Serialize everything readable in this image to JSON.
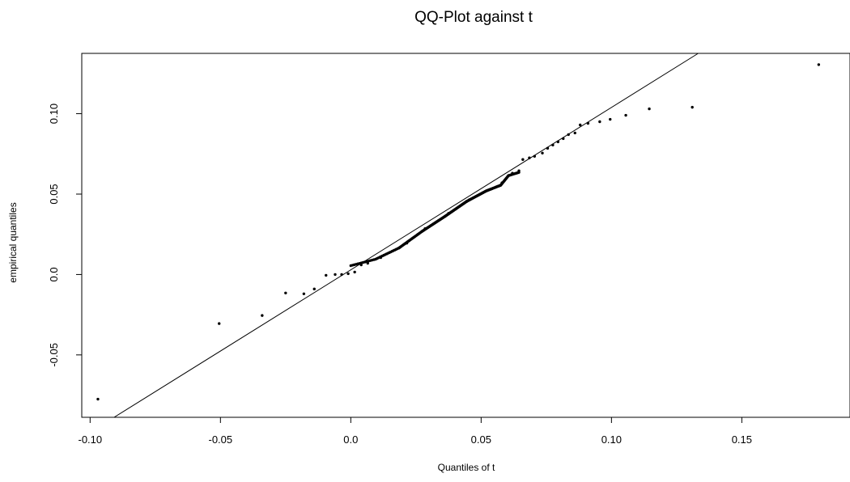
{
  "chart_data": {
    "type": "scatter",
    "title": "QQ-Plot against t",
    "xlabel": "Quantiles of t",
    "ylabel": "empirical quantiles",
    "xlim": [
      -0.1032,
      0.1915
    ],
    "ylim": [
      -0.0888,
      0.1375
    ],
    "grid": false,
    "x_ticks": [
      {
        "value": -0.1,
        "label": "-0.10"
      },
      {
        "value": -0.05,
        "label": "-0.05"
      },
      {
        "value": 0.0,
        "label": "0.0"
      },
      {
        "value": 0.05,
        "label": "0.05"
      },
      {
        "value": 0.1,
        "label": "0.10"
      },
      {
        "value": 0.15,
        "label": "0.15"
      }
    ],
    "y_ticks": [
      {
        "value": -0.05,
        "label": "-0.05"
      },
      {
        "value": 0.0,
        "label": "0.0"
      },
      {
        "value": 0.05,
        "label": "0.05"
      },
      {
        "value": 0.1,
        "label": "0.10"
      }
    ],
    "reference_line": {
      "slope": 1.01,
      "intercept": 0.0029
    },
    "points": [
      {
        "x": -0.097,
        "y": -0.0775
      },
      {
        "x": -0.0505,
        "y": -0.0305
      },
      {
        "x": -0.034,
        "y": -0.0255
      },
      {
        "x": -0.025,
        "y": -0.0115
      },
      {
        "x": -0.018,
        "y": -0.012
      },
      {
        "x": -0.014,
        "y": -0.009
      },
      {
        "x": -0.0095,
        "y": -0.0005
      },
      {
        "x": -0.006,
        "y": 0.0
      },
      {
        "x": -0.0035,
        "y": 0.0
      },
      {
        "x": -0.001,
        "y": 0.0005
      },
      {
        "x": 0.0015,
        "y": 0.0015
      },
      {
        "x": 0.004,
        "y": 0.006
      },
      {
        "x": 0.0065,
        "y": 0.007
      },
      {
        "x": 0.0115,
        "y": 0.0105
      },
      {
        "x": 0.0215,
        "y": 0.0195
      },
      {
        "x": 0.0285,
        "y": 0.0285
      },
      {
        "x": 0.0375,
        "y": 0.038
      },
      {
        "x": 0.0455,
        "y": 0.0465
      },
      {
        "x": 0.058,
        "y": 0.057
      },
      {
        "x": 0.062,
        "y": 0.063
      },
      {
        "x": 0.0645,
        "y": 0.0645
      },
      {
        "x": 0.066,
        "y": 0.0715
      },
      {
        "x": 0.0685,
        "y": 0.0725
      },
      {
        "x": 0.0705,
        "y": 0.0735
      },
      {
        "x": 0.0735,
        "y": 0.0755
      },
      {
        "x": 0.0755,
        "y": 0.0785
      },
      {
        "x": 0.0775,
        "y": 0.0805
      },
      {
        "x": 0.0795,
        "y": 0.0825
      },
      {
        "x": 0.0815,
        "y": 0.0845
      },
      {
        "x": 0.0835,
        "y": 0.087
      },
      {
        "x": 0.086,
        "y": 0.088
      },
      {
        "x": 0.088,
        "y": 0.093
      },
      {
        "x": 0.091,
        "y": 0.094
      },
      {
        "x": 0.0955,
        "y": 0.095
      },
      {
        "x": 0.0995,
        "y": 0.0965
      },
      {
        "x": 0.1055,
        "y": 0.099
      },
      {
        "x": 0.1145,
        "y": 0.103
      },
      {
        "x": 0.131,
        "y": 0.104
      },
      {
        "x": 0.1795,
        "y": 0.1305
      }
    ],
    "dense_segments": [
      {
        "x0": 0.0,
        "y0": 0.0055,
        "x1": 0.0095,
        "y1": 0.0095,
        "n": 15
      },
      {
        "x0": 0.0095,
        "y0": 0.0095,
        "x1": 0.0185,
        "y1": 0.0165,
        "n": 18
      },
      {
        "x0": 0.0185,
        "y0": 0.0165,
        "x1": 0.0275,
        "y1": 0.027,
        "n": 28
      },
      {
        "x0": 0.0275,
        "y0": 0.027,
        "x1": 0.036,
        "y1": 0.036,
        "n": 40
      },
      {
        "x0": 0.036,
        "y0": 0.036,
        "x1": 0.0445,
        "y1": 0.0455,
        "n": 45
      },
      {
        "x0": 0.0445,
        "y0": 0.0455,
        "x1": 0.052,
        "y1": 0.052,
        "n": 40
      },
      {
        "x0": 0.052,
        "y0": 0.052,
        "x1": 0.0575,
        "y1": 0.0555,
        "n": 28
      },
      {
        "x0": 0.0575,
        "y0": 0.0555,
        "x1": 0.0605,
        "y1": 0.0615,
        "n": 18
      },
      {
        "x0": 0.0605,
        "y0": 0.0615,
        "x1": 0.0645,
        "y1": 0.0635,
        "n": 14
      }
    ]
  }
}
